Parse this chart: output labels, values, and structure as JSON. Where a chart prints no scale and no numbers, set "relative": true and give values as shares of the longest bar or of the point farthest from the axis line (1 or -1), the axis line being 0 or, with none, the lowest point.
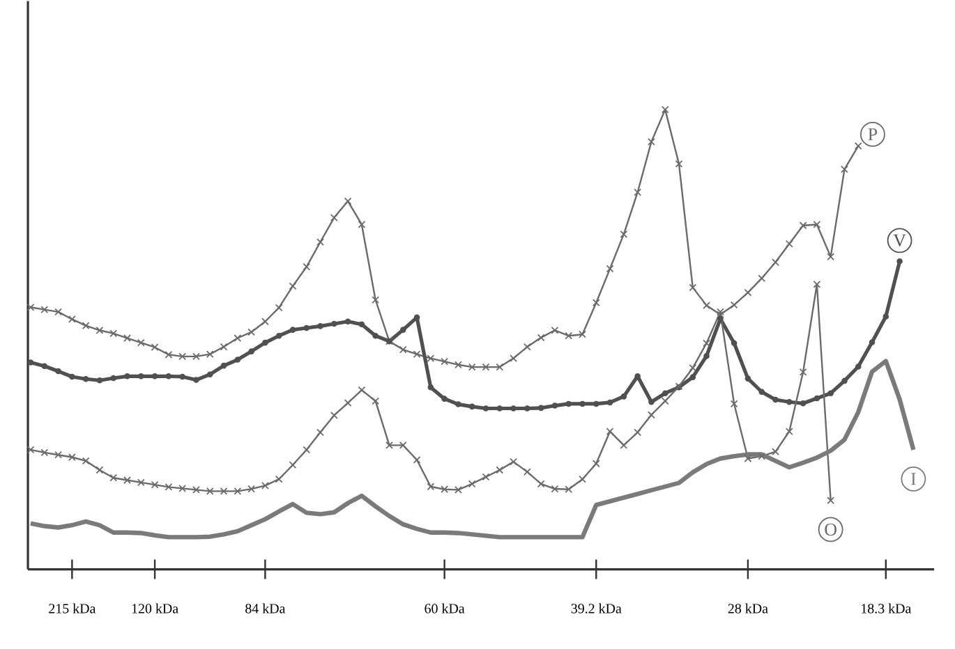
{
  "chart_data": {
    "type": "line",
    "relative": true,
    "categories": [
      null,
      null,
      null,
      "215 kDa",
      null,
      null,
      null,
      null,
      null,
      "120 kDa",
      null,
      null,
      null,
      null,
      null,
      null,
      null,
      "84 kDa",
      null,
      null,
      null,
      null,
      null,
      null,
      null,
      null,
      null,
      null,
      null,
      null,
      "60 kDa",
      null,
      null,
      null,
      null,
      null,
      null,
      null,
      null,
      null,
      null,
      "39.2 kDa",
      null,
      null,
      null,
      null,
      null,
      null,
      null,
      null,
      null,
      null,
      "28 kDa",
      null,
      null,
      null,
      null,
      null,
      null,
      null,
      null,
      null,
      "18.3 kDa",
      null,
      null,
      null
    ],
    "tick_labels": "x",
    "grid": false,
    "legend": false,
    "series": [
      {
        "name": "P",
        "color": "#6a6a6a",
        "marker": "cross",
        "values": [
          0.57,
          0.565,
          0.56,
          0.544,
          0.53,
          0.52,
          0.513,
          0.503,
          0.493,
          0.483,
          0.467,
          0.463,
          0.463,
          0.468,
          0.484,
          0.503,
          0.516,
          0.539,
          0.569,
          0.616,
          0.658,
          0.712,
          0.765,
          0.801,
          0.75,
          0.586,
          0.496,
          0.478,
          0.468,
          0.459,
          0.452,
          0.445,
          0.44,
          0.44,
          0.44,
          0.459,
          0.484,
          0.504,
          0.52,
          0.508,
          0.511,
          0.58,
          0.654,
          0.729,
          0.82,
          0.93,
          1.0,
          0.882,
          0.613,
          0.574,
          0.554,
          0.575,
          0.602,
          0.633,
          0.668,
          0.708,
          0.748,
          0.75,
          0.68,
          0.87,
          0.921,
          null,
          null,
          null,
          null,
          null
        ]
      },
      {
        "name": "V",
        "color": "#505050",
        "marker": "circle",
        "values": [
          0.45,
          0.442,
          0.431,
          0.419,
          0.414,
          0.411,
          0.416,
          0.42,
          0.42,
          0.42,
          0.42,
          0.419,
          0.412,
          0.424,
          0.443,
          0.456,
          0.474,
          0.493,
          0.508,
          0.521,
          0.525,
          0.529,
          0.534,
          0.539,
          0.533,
          0.508,
          0.496,
          0.521,
          0.548,
          0.396,
          0.371,
          0.359,
          0.354,
          0.35,
          0.35,
          0.35,
          0.35,
          0.351,
          0.356,
          0.36,
          0.36,
          0.36,
          0.363,
          0.376,
          0.42,
          0.364,
          0.383,
          0.396,
          0.418,
          0.464,
          0.545,
          0.492,
          0.415,
          0.386,
          0.369,
          0.364,
          0.361,
          0.372,
          0.383,
          0.41,
          0.441,
          0.494,
          0.55,
          0.67,
          null,
          null
        ]
      },
      {
        "name": "O",
        "color": "#6a6a6a",
        "marker": "cross",
        "values": [
          0.26,
          0.254,
          0.249,
          0.244,
          0.236,
          0.216,
          0.199,
          0.194,
          0.189,
          0.184,
          0.179,
          0.176,
          0.173,
          0.17,
          0.17,
          0.17,
          0.175,
          0.182,
          0.196,
          0.227,
          0.26,
          0.298,
          0.335,
          0.362,
          0.39,
          0.366,
          0.27,
          0.27,
          0.238,
          0.18,
          0.174,
          0.173,
          0.186,
          0.201,
          0.216,
          0.234,
          0.212,
          0.186,
          0.175,
          0.174,
          0.196,
          0.23,
          0.3,
          0.27,
          0.298,
          0.336,
          0.366,
          0.398,
          0.438,
          0.492,
          0.56,
          0.36,
          0.241,
          0.246,
          0.256,
          0.3,
          0.429,
          0.62,
          0.15,
          null,
          null,
          null,
          null,
          null,
          null,
          null
        ]
      },
      {
        "name": "I",
        "color": "#7a7a7a",
        "marker": "none",
        "values": [
          0.1,
          0.094,
          0.091,
          0.096,
          0.104,
          0.096,
          0.08,
          0.08,
          0.079,
          0.074,
          0.07,
          0.07,
          0.07,
          0.071,
          0.076,
          0.083,
          0.096,
          0.109,
          0.126,
          0.142,
          0.123,
          0.12,
          0.124,
          0.144,
          0.16,
          0.137,
          0.116,
          0.098,
          0.088,
          0.08,
          0.08,
          0.079,
          0.076,
          0.073,
          0.07,
          0.07,
          0.07,
          0.07,
          0.07,
          0.07,
          0.07,
          0.14,
          0.148,
          0.156,
          0.164,
          0.172,
          0.18,
          0.188,
          0.211,
          0.229,
          0.241,
          0.246,
          0.25,
          0.25,
          0.236,
          0.222,
          0.232,
          0.243,
          0.258,
          0.282,
          0.342,
          0.43,
          0.453,
          0.37,
          0.26,
          null
        ]
      }
    ]
  }
}
